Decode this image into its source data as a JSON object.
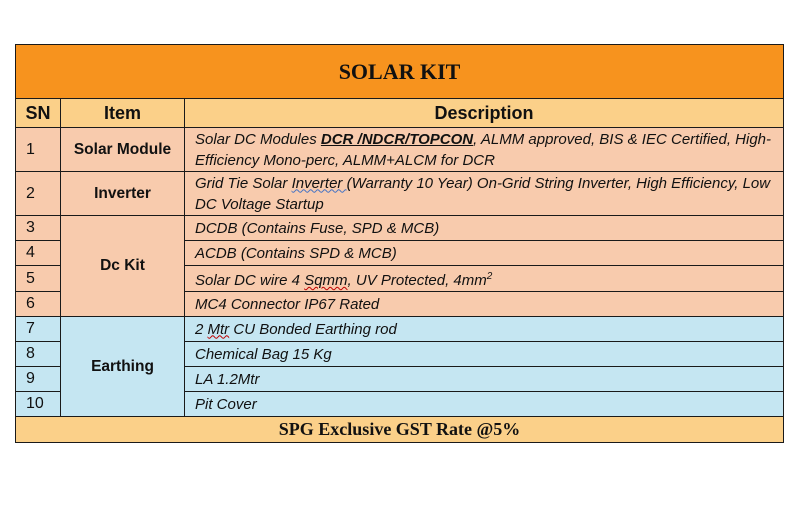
{
  "title": "SOLAR KIT",
  "headers": {
    "sn": "SN",
    "item": "Item",
    "description": "Description"
  },
  "rows": [
    {
      "sn": "1",
      "item": "Solar Module",
      "desc_prefix": "Solar DC Modules ",
      "desc_highlight": "DCR /NDCR/TOPCON",
      "desc_suffix": ", ALMM approved, BIS & IEC Certified, High-Efficiency Mono-perc, ALMM+ALCM for DCR"
    },
    {
      "sn": "2",
      "item": "Inverter",
      "desc_prefix": "Grid Tie Solar ",
      "desc_highlight": "Inverter ",
      "desc_suffix": " (Warranty 10 Year) On-Grid String Inverter, High Efficiency, Low DC Voltage Startup"
    },
    {
      "sn": "3",
      "item": "Dc Kit",
      "desc": "DCDB (Contains Fuse, SPD & MCB)"
    },
    {
      "sn": "4",
      "desc": "ACDB (Contains SPD & MCB)"
    },
    {
      "sn": "5",
      "desc_prefix": "Solar DC wire 4 ",
      "desc_highlight": "Sqmm",
      "desc_suffix": ", UV Protected, 4mm",
      "desc_sup": "2"
    },
    {
      "sn": "6",
      "desc": "MC4 Connector IP67 Rated"
    },
    {
      "sn": "7",
      "item": "Earthing",
      "desc_prefix": "2 ",
      "desc_highlight": "Mtr",
      "desc_suffix": " CU Bonded Earthing rod"
    },
    {
      "sn": "8",
      "desc": "Chemical Bag 15 Kg"
    },
    {
      "sn": "9",
      "desc": "LA 1.2Mtr"
    },
    {
      "sn": "10",
      "desc": "Pit Cover"
    }
  ],
  "footer": "SPG Exclusive GST Rate @5%",
  "colors": {
    "title_bg": "#f7931e",
    "header_bg": "#fbd089",
    "peach": "#f8cbad",
    "blue": "#c5e6f2"
  }
}
